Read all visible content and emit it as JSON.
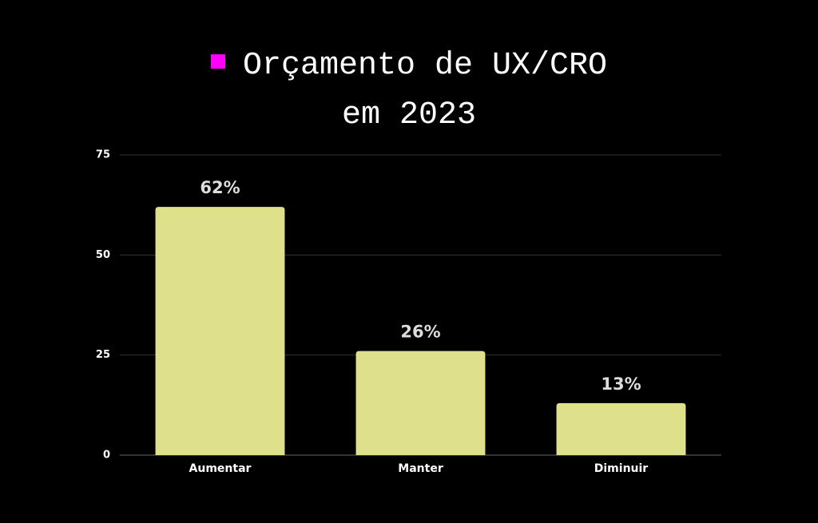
{
  "chart_data": {
    "type": "bar",
    "title": "Orçamento de UX/CRO em 2023",
    "title_marker_color": "#ff00ff",
    "categories": [
      "Aumentar",
      "Manter",
      "Diminuir"
    ],
    "values": [
      62,
      26,
      13
    ],
    "value_labels": [
      "62%",
      "26%",
      "13%"
    ],
    "color": "#dfe08c",
    "ylim": [
      0,
      75
    ],
    "yticks": [
      0,
      25,
      50,
      75
    ],
    "grid": true
  }
}
